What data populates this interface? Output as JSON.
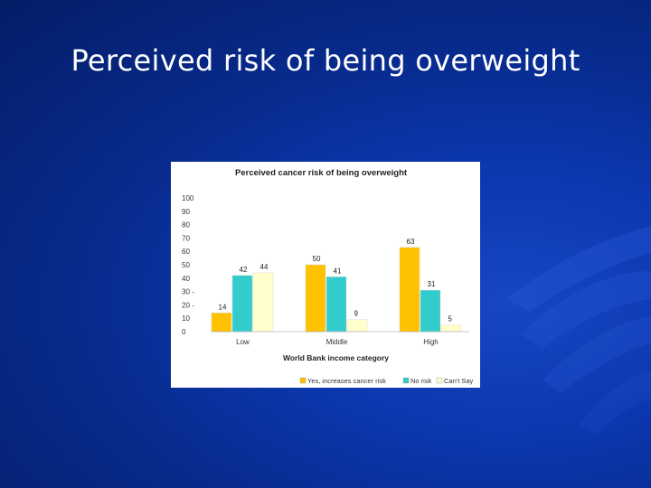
{
  "slide": {
    "title": "Perceived risk of being overweight"
  },
  "colors": {
    "yes": "#FFC200",
    "no": "#33CCCC",
    "cant": "#FFFFCC"
  },
  "chart_data": {
    "type": "bar",
    "title": "Perceived cancer risk of being overweight",
    "xlabel": "World Bank income category",
    "ylabel": "",
    "ylim": [
      0,
      100
    ],
    "yticks": [
      "0",
      "10",
      "20 -",
      "30 -",
      "40",
      "50",
      "60",
      "70",
      "80",
      "90",
      "100"
    ],
    "categories": [
      "Low",
      "Middle",
      "High"
    ],
    "series": [
      {
        "name": "Yes, increases cancer risk",
        "values": [
          14,
          50,
          63
        ]
      },
      {
        "name": "No risk",
        "values": [
          42,
          41,
          31
        ]
      },
      {
        "name": "Can't Say",
        "values": [
          44,
          9,
          5
        ]
      }
    ],
    "legend_position": "bottom-right",
    "grid": false
  }
}
